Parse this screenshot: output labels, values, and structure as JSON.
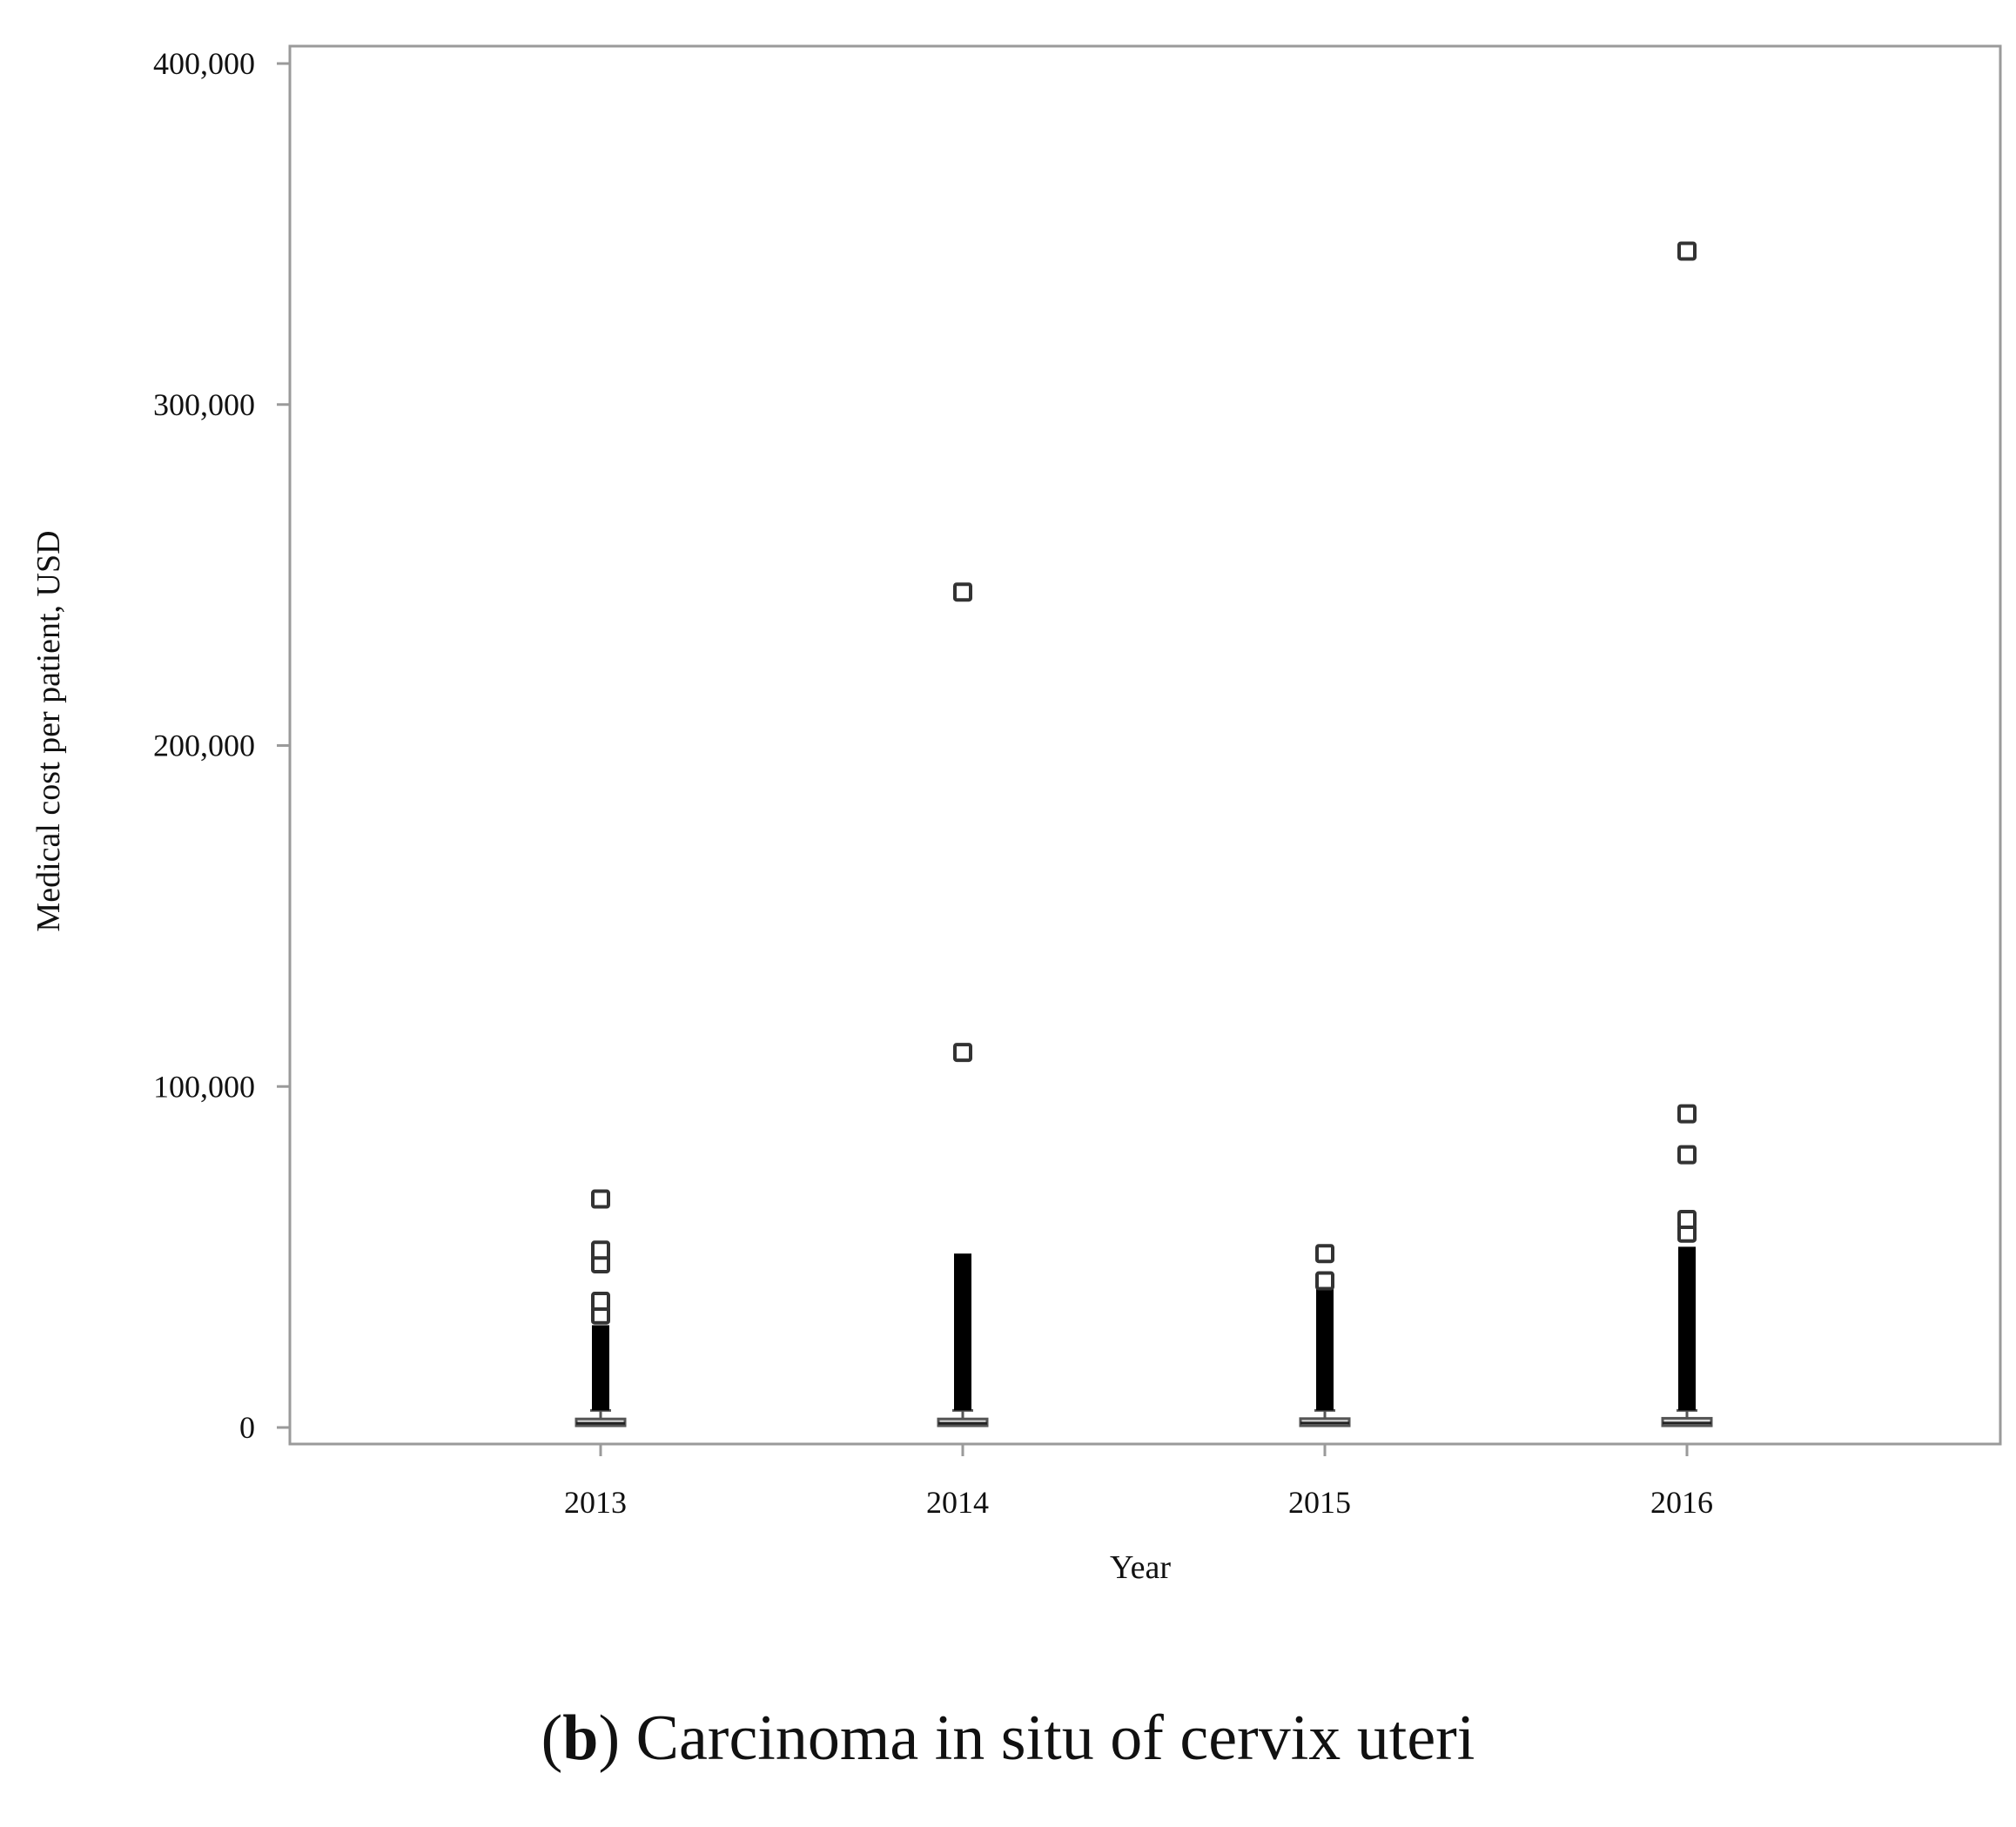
{
  "chart_data": {
    "type": "box",
    "xlabel": "Year",
    "ylabel": "Medical cost per patient, USD",
    "categories": [
      "2013",
      "2014",
      "2015",
      "2016"
    ],
    "ylim": [
      0,
      400000
    ],
    "yticks": [
      0,
      100000,
      200000,
      300000,
      400000
    ],
    "ytick_labels": [
      "0",
      "100,000",
      "200,000",
      "300,000",
      "400,000"
    ],
    "grid": false,
    "legend": "none",
    "boxes": [
      {
        "category": "2013",
        "q1": 500,
        "median": 1200,
        "q3": 2500,
        "whisker_high": 5000,
        "dense_outlier_range": [
          5000,
          30000
        ],
        "outliers": [
          33000,
          37000,
          48000,
          52000,
          67000
        ]
      },
      {
        "category": "2014",
        "q1": 500,
        "median": 1200,
        "q3": 2500,
        "whisker_high": 5000,
        "dense_outlier_range": [
          5000,
          51000
        ],
        "outliers": [
          110000,
          245000
        ]
      },
      {
        "category": "2015",
        "q1": 500,
        "median": 1300,
        "q3": 2600,
        "whisker_high": 5000,
        "dense_outlier_range": [
          5000,
          41000
        ],
        "outliers": [
          43000,
          51000
        ]
      },
      {
        "category": "2016",
        "q1": 500,
        "median": 1300,
        "q3": 2700,
        "whisker_high": 5000,
        "dense_outlier_range": [
          5000,
          53000
        ],
        "outliers": [
          57000,
          61000,
          80000,
          92000,
          345000
        ]
      }
    ]
  },
  "caption": {
    "panel_letter": "b",
    "text": "Carcinoma in situ of cervix uteri"
  }
}
